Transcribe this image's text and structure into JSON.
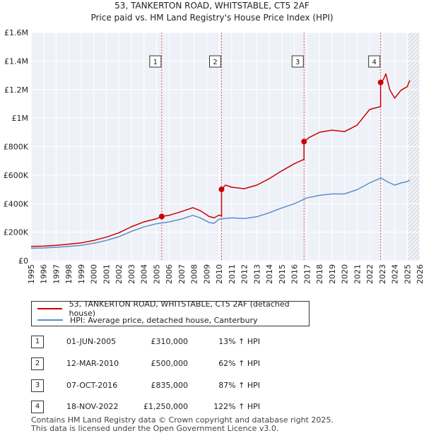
{
  "chart_data": {
    "type": "line",
    "title": "53, TANKERTON ROAD, WHITSTABLE, CT5 2AF",
    "subtitle": "Price paid vs. HM Land Registry's House Price Index (HPI)",
    "xlim": [
      1995,
      2026
    ],
    "ylim": [
      0,
      1600000
    ],
    "x_ticks": [
      "1995",
      "1996",
      "1997",
      "1998",
      "1999",
      "2000",
      "2001",
      "2002",
      "2003",
      "2004",
      "2005",
      "2006",
      "2007",
      "2008",
      "2009",
      "2010",
      "2011",
      "2012",
      "2013",
      "2014",
      "2015",
      "2016",
      "2017",
      "2018",
      "2019",
      "2020",
      "2021",
      "2022",
      "2023",
      "2024",
      "2025",
      "2026"
    ],
    "y_ticks": [
      {
        "value": 0,
        "label": "£0"
      },
      {
        "value": 200000,
        "label": "£200K"
      },
      {
        "value": 400000,
        "label": "£400K"
      },
      {
        "value": 600000,
        "label": "£600K"
      },
      {
        "value": 800000,
        "label": "£800K"
      },
      {
        "value": 1000000,
        "label": "£1M"
      },
      {
        "value": 1200000,
        "label": "£1.2M"
      },
      {
        "value": 1400000,
        "label": "£1.4M"
      },
      {
        "value": 1600000,
        "label": "£1.6M"
      }
    ],
    "grid": true,
    "forecast_start": 2025.1,
    "series": [
      {
        "name": "53, TANKERTON ROAD, WHITSTABLE, CT5 2AF (detached house)",
        "color": "#cc0000",
        "x": [
          1995.0,
          1996.0,
          1997.0,
          1998.0,
          1999.0,
          2000.0,
          2001.0,
          2002.0,
          2003.0,
          2004.0,
          2005.0,
          2005.42,
          2006.0,
          2007.0,
          2007.9,
          2008.5,
          2009.2,
          2009.6,
          2010.0,
          2010.19,
          2010.19,
          2010.5,
          2011.0,
          2012.0,
          2013.0,
          2014.0,
          2015.0,
          2016.0,
          2016.75,
          2016.77,
          2016.77,
          2017.2,
          2018.0,
          2019.0,
          2020.0,
          2021.0,
          2022.0,
          2022.85,
          2022.88,
          2022.88,
          2023.1,
          2023.3,
          2023.6,
          2024.0,
          2024.5,
          2025.0,
          2025.2
        ],
        "y": [
          100000,
          102000,
          108000,
          116000,
          125000,
          142000,
          165000,
          195000,
          238000,
          272000,
          294000,
          310000,
          318000,
          345000,
          372000,
          350000,
          310000,
          300000,
          320000,
          312000,
          500000,
          530000,
          515000,
          505000,
          530000,
          575000,
          630000,
          680000,
          710000,
          710000,
          835000,
          865000,
          900000,
          915000,
          905000,
          950000,
          1060000,
          1080000,
          1080000,
          1250000,
          1270000,
          1310000,
          1200000,
          1140000,
          1195000,
          1220000,
          1265000
        ]
      },
      {
        "name": "HPI: Average price, detached house, Canterbury",
        "color": "#5b8ec8",
        "x": [
          1995.0,
          1996.0,
          1997.0,
          1998.0,
          1999.0,
          2000.0,
          2001.0,
          2002.0,
          2003.0,
          2004.0,
          2005.0,
          2006.0,
          2007.0,
          2007.9,
          2008.5,
          2009.2,
          2009.6,
          2010.0,
          2011.0,
          2012.0,
          2013.0,
          2014.0,
          2015.0,
          2016.0,
          2017.0,
          2018.0,
          2019.0,
          2020.0,
          2021.0,
          2022.0,
          2022.9,
          2023.5,
          2024.0,
          2024.5,
          2025.0,
          2025.2
        ],
        "y": [
          87000,
          89000,
          94000,
          100000,
          108000,
          122000,
          142000,
          168000,
          205000,
          237000,
          259000,
          272000,
          292000,
          318000,
          300000,
          268000,
          262000,
          292000,
          300000,
          295000,
          308000,
          336000,
          370000,
          400000,
          440000,
          458000,
          468000,
          468000,
          498000,
          545000,
          580000,
          550000,
          530000,
          545000,
          555000,
          565000
        ]
      }
    ],
    "markers": [
      {
        "label": "1",
        "x": 2005.42,
        "y": 310000
      },
      {
        "label": "2",
        "x": 2010.19,
        "y": 500000
      },
      {
        "label": "3",
        "x": 2016.77,
        "y": 835000
      },
      {
        "label": "4",
        "x": 2022.88,
        "y": 1250000
      }
    ]
  },
  "legend": {
    "items": [
      {
        "label": "53, TANKERTON ROAD, WHITSTABLE, CT5 2AF (detached house)",
        "color": "#cc0000"
      },
      {
        "label": "HPI: Average price, detached house, Canterbury",
        "color": "#5b8ec8"
      }
    ]
  },
  "transactions": [
    {
      "num": "1",
      "date": "01-JUN-2005",
      "price": "£310,000",
      "hpi": "13% ↑ HPI"
    },
    {
      "num": "2",
      "date": "12-MAR-2010",
      "price": "£500,000",
      "hpi": "62% ↑ HPI"
    },
    {
      "num": "3",
      "date": "07-OCT-2016",
      "price": "£835,000",
      "hpi": "87% ↑ HPI"
    },
    {
      "num": "4",
      "date": "18-NOV-2022",
      "price": "£1,250,000",
      "hpi": "122% ↑ HPI"
    }
  ],
  "footer": {
    "line1": "Contains HM Land Registry data © Crown copyright and database right 2025.",
    "line2": "This data is licensed under the Open Government Licence v3.0."
  }
}
